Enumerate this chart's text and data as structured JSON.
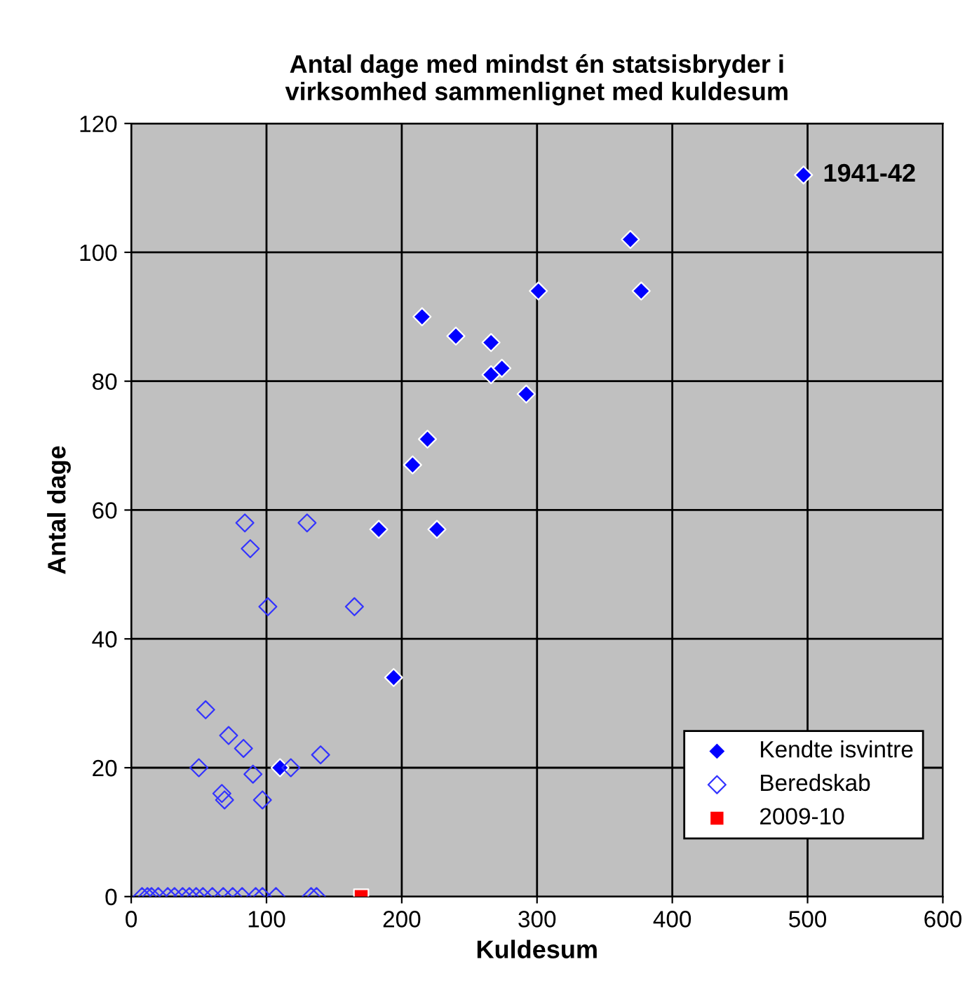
{
  "chart_data": {
    "type": "scatter",
    "title": "Antal dage med mindst én statsisbryder i\nvirksomhed sammenlignet med kuldesum",
    "xlabel": "Kuldesum",
    "ylabel": "Antal dage",
    "xlim": [
      0,
      600
    ],
    "ylim": [
      0,
      120
    ],
    "xticks": [
      0,
      100,
      200,
      300,
      400,
      500,
      600
    ],
    "yticks": [
      0,
      20,
      40,
      60,
      80,
      100,
      120
    ],
    "grid": true,
    "legend": "bottom right",
    "marker": "diamond",
    "annotations": [
      {
        "text": "1941-42",
        "x": 497,
        "y": 112
      }
    ],
    "series": [
      {
        "name": "Kendte isvintre",
        "color": "#0000ff",
        "x": [
          497,
          369,
          377,
          301,
          215,
          240,
          266,
          266,
          274,
          292,
          208,
          219,
          183,
          226,
          194,
          110
        ],
        "values": [
          112,
          102,
          94,
          94,
          90,
          87,
          86,
          81,
          82,
          78,
          67,
          71,
          57,
          57,
          34,
          20
        ]
      },
      {
        "name": "Beredskab",
        "color": "#3333ff",
        "x": [
          84,
          130,
          88,
          101,
          165,
          55,
          72,
          83,
          140,
          50,
          90,
          118,
          67,
          69,
          97,
          8,
          12,
          15,
          20,
          27,
          32,
          38,
          43,
          48,
          53,
          60,
          68,
          75,
          82,
          92,
          97,
          107,
          133,
          137
        ],
        "values": [
          58,
          58,
          54,
          45,
          45,
          29,
          25,
          23,
          22,
          20,
          19,
          20,
          16,
          15,
          15,
          0,
          0,
          0,
          0,
          0,
          0,
          0,
          0,
          0,
          0,
          0,
          0,
          0,
          0,
          0,
          0,
          0,
          0,
          0
        ]
      },
      {
        "name": "2009-10",
        "color": "#ff0000",
        "marker": "square",
        "x": [
          170
        ],
        "values": [
          0
        ]
      }
    ]
  }
}
